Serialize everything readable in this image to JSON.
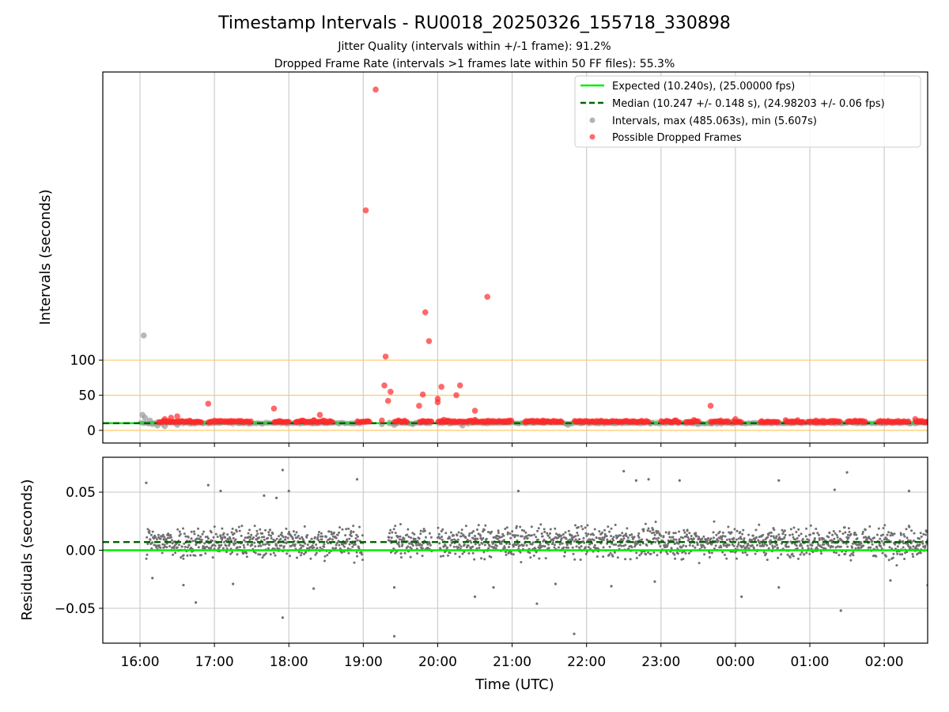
{
  "colors": {
    "expected": "#00ee00",
    "median": "#006400",
    "intervals": "#999999",
    "dropped": "#ff2a2a",
    "residuals": "#707070",
    "threshold": "#ffc966",
    "grid": "#cccccc"
  },
  "chart_data": [
    {
      "type": "scatter",
      "title": "Timestamp Intervals - RU0018_20250326_155718_330898",
      "subtitle": [
        "Jitter Quality (intervals within +/-1 frame): 91.2%",
        "Dropped Frame Rate (intervals >1 frames late within 50 FF files): 55.3%"
      ],
      "xlabel": "",
      "ylabel": "Intervals (seconds)",
      "xlim": [
        "15:30",
        "02:35"
      ],
      "ylim": [
        -18,
        510
      ],
      "ytick_values": [
        0,
        50,
        100
      ],
      "ytick_labels": [
        "0",
        "50",
        "100"
      ],
      "grid": "vertical",
      "threshold_lines": [
        0,
        50,
        100
      ],
      "legend": {
        "placement": "upper-right",
        "entries": [
          "Expected (10.240s), (25.00000 fps)",
          "Median (10.247 +/- 0.148 s), (24.98203 +/- 0.06 fps)",
          "Intervals, max (485.063s), min (5.607s)",
          "Possible Dropped Frames"
        ]
      },
      "series": [
        {
          "name": "Expected (10.240s), (25.00000 fps)",
          "type": "hline",
          "y": 10.24
        },
        {
          "name": "Median (10.247 +/- 0.148 s), (24.98203 +/- 0.06 fps)",
          "type": "hline",
          "y": 10.247
        },
        {
          "name": "Intervals, max (485.063s), min (5.607s)",
          "type": "scatter",
          "segments": [
            [
              "16:00",
              "19:00"
            ],
            [
              "19:20",
              "19:55"
            ],
            [
              "20:00",
              "02:35"
            ]
          ],
          "typical": 10.24,
          "points": [
            [
              "16:03",
              135
            ],
            [
              "16:02",
              22
            ],
            [
              "16:04",
              18
            ],
            [
              "16:08",
              14
            ],
            [
              "16:10",
              9
            ],
            [
              "16:14",
              7
            ],
            [
              "16:20",
              6
            ],
            [
              "16:30",
              8
            ],
            [
              "19:15",
              9
            ],
            [
              "19:25",
              8
            ],
            [
              "19:40",
              9
            ],
            [
              "20:20",
              7
            ],
            [
              "21:45",
              8
            ],
            [
              "23:30",
              9
            ]
          ]
        },
        {
          "name": "Possible Dropped Frames",
          "type": "scatter",
          "points": [
            [
              "19:10",
              485
            ],
            [
              "19:02",
              313
            ],
            [
              "20:40",
              190
            ],
            [
              "19:50",
              168
            ],
            [
              "19:53",
              127
            ],
            [
              "19:18",
              105
            ],
            [
              "19:17",
              64
            ],
            [
              "20:18",
              64
            ],
            [
              "19:22",
              55
            ],
            [
              "20:03",
              62
            ],
            [
              "20:15",
              50
            ],
            [
              "19:48",
              51
            ],
            [
              "20:00",
              45
            ],
            [
              "19:20",
              42
            ],
            [
              "20:00",
              40
            ],
            [
              "19:45",
              35
            ],
            [
              "20:30",
              28
            ],
            [
              "19:15",
              14
            ],
            [
              "16:20",
              16
            ],
            [
              "16:25",
              18
            ],
            [
              "16:30",
              20
            ],
            [
              "16:55",
              38
            ],
            [
              "17:48",
              31
            ],
            [
              "18:25",
              22
            ],
            [
              "23:40",
              35
            ],
            [
              "00:00",
              16
            ],
            [
              "20:05",
              15
            ],
            [
              "21:25",
              14
            ],
            [
              "20:30",
              15
            ],
            [
              "01:05",
              14
            ],
            [
              "02:25",
              16
            ]
          ],
          "clusters": [
            [
              "16:15",
              "16:50"
            ],
            [
              "16:55",
              "17:30"
            ],
            [
              "17:48",
              "18:00"
            ],
            [
              "18:05",
              "18:35"
            ],
            [
              "18:55",
              "19:05"
            ],
            [
              "19:25",
              "19:35"
            ],
            [
              "19:45",
              "19:55"
            ],
            [
              "20:00",
              "21:00"
            ],
            [
              "21:10",
              "21:40"
            ],
            [
              "21:50",
              "22:15"
            ],
            [
              "22:15",
              "22:30"
            ],
            [
              "22:30",
              "22:50"
            ],
            [
              "23:00",
              "23:15"
            ],
            [
              "23:20",
              "23:30"
            ],
            [
              "23:40",
              "23:55"
            ],
            [
              "23:58",
              "00:05"
            ],
            [
              "00:20",
              "00:35"
            ],
            [
              "00:40",
              "00:55"
            ],
            [
              "00:58",
              "01:25"
            ],
            [
              "01:30",
              "01:45"
            ],
            [
              "01:55",
              "02:20"
            ],
            [
              "02:25",
              "02:35"
            ]
          ]
        }
      ]
    },
    {
      "type": "scatter",
      "title": "",
      "xlabel": "Time (UTC)",
      "ylabel": "Residuals (seconds)",
      "xlim": [
        "15:30",
        "02:35"
      ],
      "ylim": [
        -0.08,
        0.08
      ],
      "ytick_values": [
        0.05,
        0,
        -0.05
      ],
      "ytick_labels": [
        "0.05",
        "0.00",
        "−0.05"
      ],
      "xtick_values": [
        "16:00",
        "17:00",
        "18:00",
        "19:00",
        "20:00",
        "21:00",
        "22:00",
        "23:00",
        "00:00",
        "01:00",
        "02:00"
      ],
      "xtick_labels": [
        "16:00",
        "17:00",
        "18:00",
        "19:00",
        "20:00",
        "21:00",
        "22:00",
        "23:00",
        "00:00",
        "01:00",
        "02:00"
      ],
      "grid": true,
      "series": [
        {
          "name": "",
          "type": "hline",
          "y": 0.0,
          "role": "expected"
        },
        {
          "name": "",
          "type": "hline",
          "y": 0.007,
          "role": "median"
        },
        {
          "name": "",
          "type": "scatter",
          "segments": [
            [
              "16:05",
              "19:00"
            ],
            [
              "19:20",
              "19:55"
            ],
            [
              "20:00",
              "02:35"
            ]
          ],
          "center": 0.007,
          "spread": 0.012,
          "outliers": [
            [
              "16:05",
              0.058
            ],
            [
              "16:55",
              0.056
            ],
            [
              "17:05",
              0.051
            ],
            [
              "17:40",
              0.047
            ],
            [
              "17:50",
              0.045
            ],
            [
              "17:55",
              0.069
            ],
            [
              "18:00",
              0.051
            ],
            [
              "18:55",
              0.061
            ],
            [
              "21:05",
              0.051
            ],
            [
              "22:30",
              0.068
            ],
            [
              "22:40",
              0.06
            ],
            [
              "22:50",
              0.061
            ],
            [
              "23:15",
              0.06
            ],
            [
              "00:35",
              0.06
            ],
            [
              "01:20",
              0.052
            ],
            [
              "01:30",
              0.067
            ],
            [
              "02:20",
              0.051
            ],
            [
              "16:10",
              -0.024
            ],
            [
              "16:35",
              -0.03
            ],
            [
              "16:45",
              -0.045
            ],
            [
              "17:15",
              -0.029
            ],
            [
              "17:55",
              -0.058
            ],
            [
              "18:20",
              -0.033
            ],
            [
              "19:25",
              -0.032
            ],
            [
              "19:25",
              -0.074
            ],
            [
              "20:30",
              -0.04
            ],
            [
              "20:45",
              -0.032
            ],
            [
              "21:20",
              -0.046
            ],
            [
              "21:35",
              -0.029
            ],
            [
              "21:50",
              -0.072
            ],
            [
              "22:20",
              -0.031
            ],
            [
              "22:55",
              -0.027
            ],
            [
              "00:05",
              -0.04
            ],
            [
              "00:35",
              -0.032
            ],
            [
              "01:25",
              -0.052
            ],
            [
              "02:05",
              -0.026
            ],
            [
              "02:35",
              -0.03
            ]
          ]
        }
      ]
    }
  ]
}
